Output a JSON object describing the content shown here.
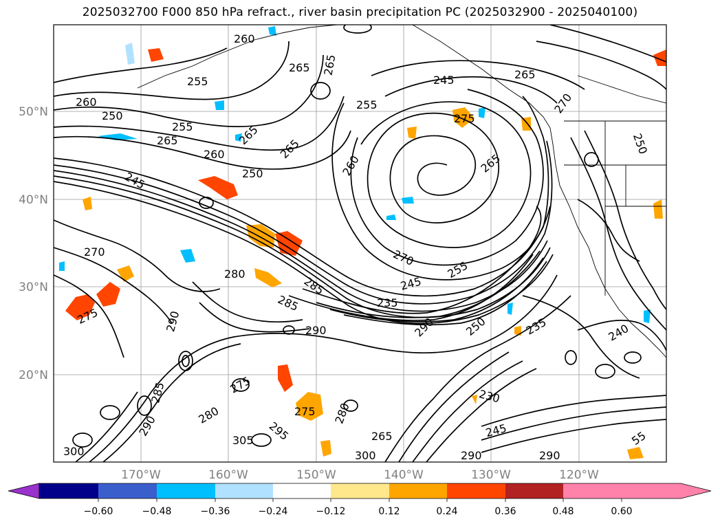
{
  "title": "2025032700 F000 850 hPa refract., river basin precipitation PC (2025032900 - 2025040100)",
  "map": {
    "lat_labels": [
      "50°N",
      "40°N",
      "30°N",
      "20°N"
    ],
    "lon_labels": [
      "170°W",
      "160°W",
      "150°W",
      "140°W",
      "130°W",
      "120°W"
    ],
    "contour_labels": [
      {
        "text": "260"
      },
      {
        "text": "265"
      },
      {
        "text": "265"
      },
      {
        "text": "255"
      },
      {
        "text": "260"
      },
      {
        "text": "250"
      },
      {
        "text": "255"
      },
      {
        "text": "265"
      },
      {
        "text": "265"
      },
      {
        "text": "265"
      },
      {
        "text": "260"
      },
      {
        "text": "250"
      },
      {
        "text": "245"
      },
      {
        "text": "260"
      },
      {
        "text": "255"
      },
      {
        "text": "245"
      },
      {
        "text": "265"
      },
      {
        "text": "265"
      },
      {
        "text": "275"
      },
      {
        "text": "270"
      },
      {
        "text": "270"
      },
      {
        "text": "280"
      },
      {
        "text": "285"
      },
      {
        "text": "285"
      },
      {
        "text": "235"
      },
      {
        "text": "245"
      },
      {
        "text": "255"
      },
      {
        "text": "290"
      },
      {
        "text": "290"
      },
      {
        "text": "275"
      },
      {
        "text": "270"
      },
      {
        "text": "250"
      },
      {
        "text": "235"
      },
      {
        "text": "240"
      },
      {
        "text": "230"
      },
      {
        "text": "245"
      },
      {
        "text": "275"
      },
      {
        "text": "275"
      },
      {
        "text": "280"
      },
      {
        "text": "290"
      },
      {
        "text": "305"
      },
      {
        "text": "300"
      },
      {
        "text": "295"
      },
      {
        "text": "285"
      },
      {
        "text": "300"
      },
      {
        "text": "265"
      },
      {
        "text": "250"
      },
      {
        "text": "290"
      },
      {
        "text": "55"
      },
      {
        "text": "290"
      },
      {
        "text": "290"
      },
      {
        "text": "280"
      }
    ]
  },
  "colorbar": {
    "labels": [
      "−0.60",
      "−0.48",
      "−0.36",
      "−0.24",
      "−0.12",
      "0.12",
      "0.24",
      "0.36",
      "0.48",
      "0.60"
    ],
    "colors": [
      "#9932cc",
      "#00008b",
      "#3a5fcd",
      "#00bfff",
      "#b0e2ff",
      "#ffffff",
      "#ffe78c",
      "#ffa500",
      "#ff4500",
      "#b22222",
      "#ff82ab"
    ]
  }
}
